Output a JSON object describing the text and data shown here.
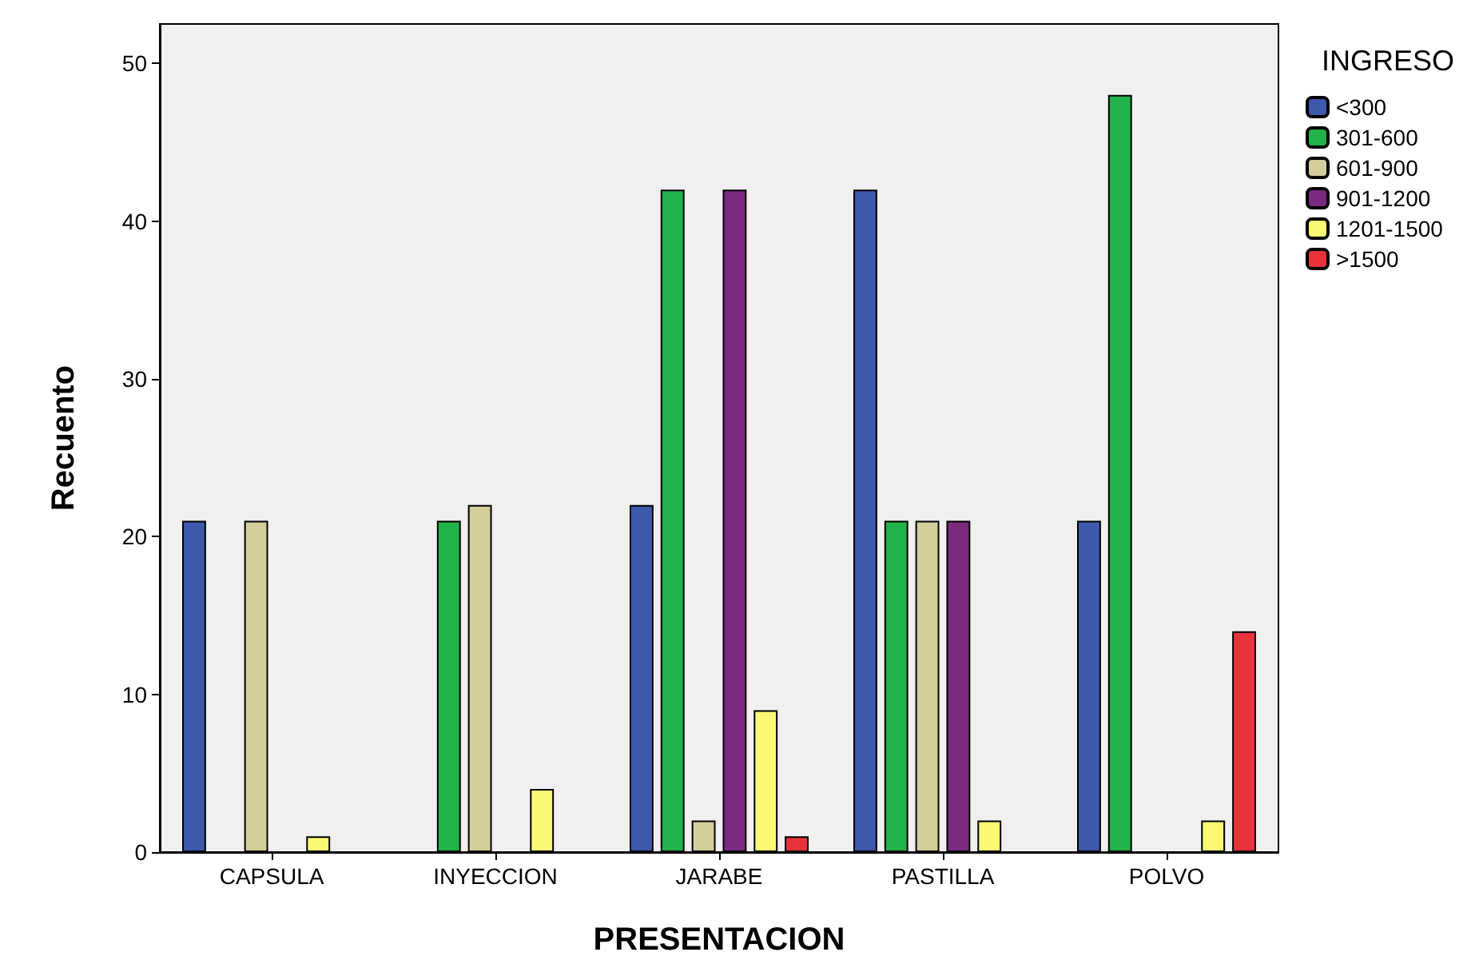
{
  "chart_data": {
    "type": "bar",
    "xlabel": "PRESENTACION",
    "ylabel": "Recuento",
    "legend_title": "INGRESO",
    "categories": [
      "CAPSULA",
      "INYECCION",
      "JARABE",
      "PASTILLA",
      "POLVO"
    ],
    "series": [
      {
        "name": "<300",
        "color": "#3e58ac",
        "values": [
          21,
          null,
          22,
          42,
          21
        ]
      },
      {
        "name": "301-600",
        "color": "#21b24b",
        "values": [
          null,
          21,
          42,
          21,
          48
        ]
      },
      {
        "name": "601-900",
        "color": "#d3ce9c",
        "values": [
          21,
          22,
          2,
          21,
          null
        ]
      },
      {
        "name": "901-1200",
        "color": "#7b2a7f",
        "values": [
          null,
          null,
          42,
          21,
          null
        ]
      },
      {
        "name": "1201-1500",
        "color": "#fbf873",
        "values": [
          1,
          4,
          9,
          2,
          2
        ]
      },
      {
        "name": ">1500",
        "color": "#e8333c",
        "values": [
          null,
          null,
          1,
          null,
          14
        ]
      }
    ],
    "ylim": [
      0,
      52.5
    ],
    "yticks": [
      0,
      10,
      20,
      30,
      40,
      50
    ],
    "grid": false,
    "legend": "top right"
  }
}
